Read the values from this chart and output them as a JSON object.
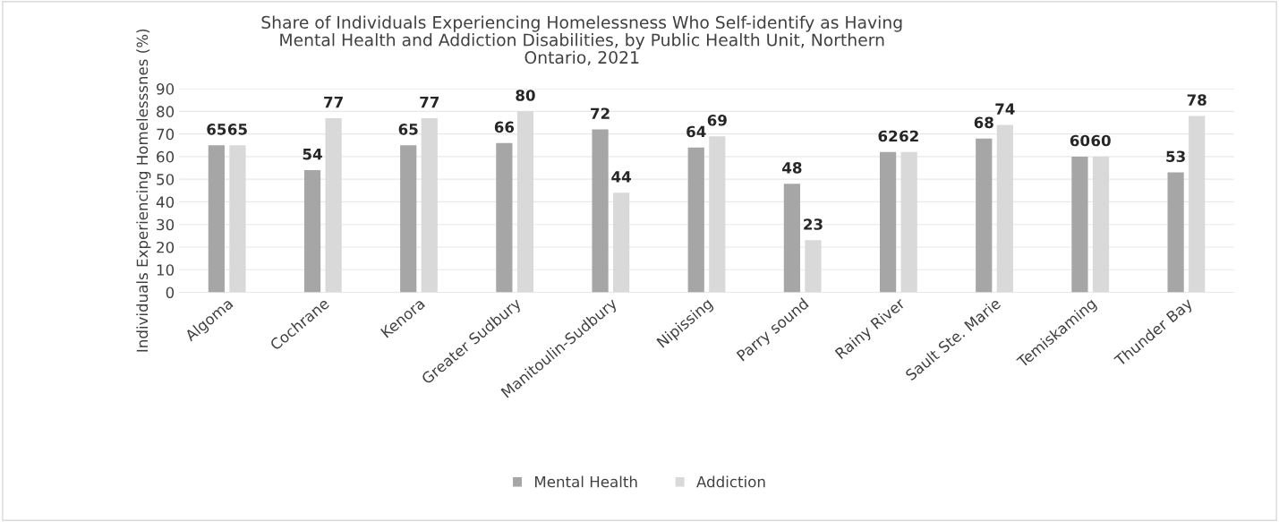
{
  "chart_data": {
    "type": "bar",
    "title": "Share of Individuals Experiencing Homelessness Who Self-identify as Having\nMental Health and Addiction Disabilities, by Public Health Unit, Northern\nOntario, 2021",
    "ylabel": "Individuals Experiencing Homelesssnes (%)",
    "categories": [
      "Algoma",
      "Cochrane",
      "Kenora",
      "Greater Sudbury",
      "Manitoulin-Sudbury",
      "Nipissing",
      "Parry sound",
      "Rainy River",
      "Sault Ste. Marie",
      "Temiskaming",
      "Thunder Bay"
    ],
    "series": [
      {
        "name": "Mental Health",
        "color": "#a6a6a6",
        "values": [
          65,
          54,
          65,
          66,
          72,
          64,
          48,
          62,
          68,
          60,
          53
        ]
      },
      {
        "name": "Addiction",
        "color": "#d9d9d9",
        "values": [
          65,
          77,
          77,
          80,
          44,
          69,
          23,
          62,
          74,
          60,
          78
        ]
      }
    ],
    "ylim": [
      0,
      90
    ],
    "yticks": [
      0,
      10,
      20,
      30,
      40,
      50,
      60,
      70,
      80,
      90
    ],
    "grid": "y",
    "legend": "bottom",
    "data_labels": true
  }
}
